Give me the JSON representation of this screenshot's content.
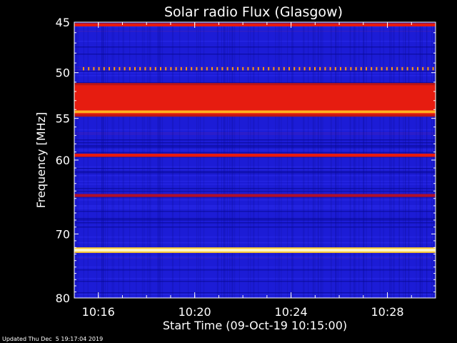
{
  "chart_data": {
    "type": "heatmap",
    "title": "Solar radio Flux (Glasgow)",
    "xlabel": "Start Time (09-Oct-19 10:15:00)",
    "ylabel": "Frequency [MHz]",
    "x_range": [
      "10:15:00",
      "10:30:00"
    ],
    "y_range": [
      45,
      80
    ],
    "y_scale": "log",
    "x_ticks": [
      "10:16",
      "10:20",
      "10:24",
      "10:28"
    ],
    "y_ticks": [
      45,
      50,
      55,
      60,
      70,
      80
    ],
    "background_intensity": "blue",
    "bands": [
      {
        "freq_from": 45.1,
        "freq_to": 45.4,
        "level": "red"
      },
      {
        "freq_from": 49.5,
        "freq_to": 49.6,
        "level": "orange-dotted"
      },
      {
        "freq_from": 51.1,
        "freq_to": 54.8,
        "level": "red"
      },
      {
        "freq_from": 54.1,
        "freq_to": 54.4,
        "level": "orange"
      },
      {
        "freq_from": 59.2,
        "freq_to": 59.6,
        "level": "red"
      },
      {
        "freq_from": 64.4,
        "freq_to": 64.8,
        "level": "dark-red"
      },
      {
        "freq_from": 72.2,
        "freq_to": 72.6,
        "level": "white"
      }
    ]
  },
  "footer": {
    "updated": "Updated Thu Dec  5 19:17:04 2019"
  }
}
